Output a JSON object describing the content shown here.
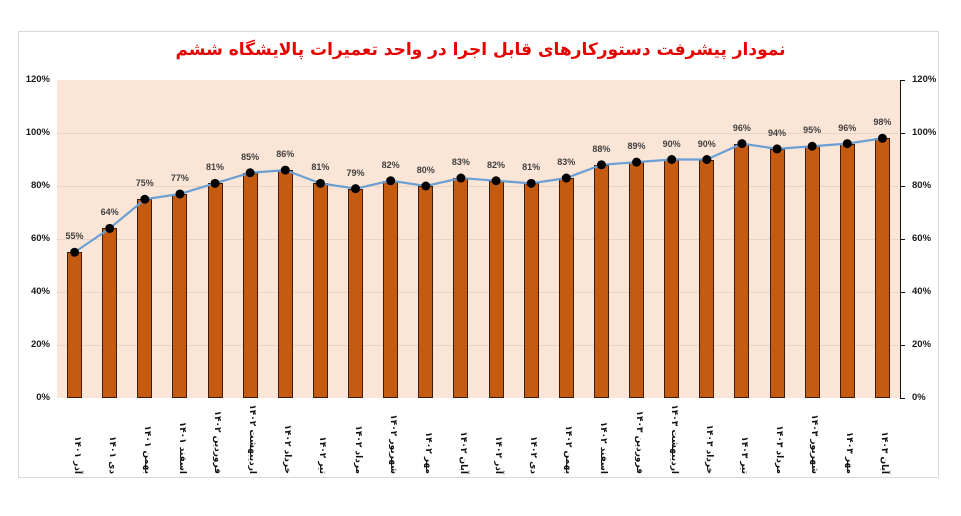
{
  "chart_data": {
    "type": "bar",
    "title": "نمودار پیشرفت دستورکارهای قابل اجرا در واحد تعمیرات پالایشگاه ششم",
    "xlabel": "",
    "ylabel": "",
    "ylim": [
      0,
      120
    ],
    "y_ticks": [
      "0%",
      "20%",
      "40%",
      "60%",
      "80%",
      "100%",
      "120%"
    ],
    "y_tick_values": [
      0,
      20,
      40,
      60,
      80,
      100,
      120
    ],
    "secondary_axis": true,
    "grid": true,
    "legend": "none",
    "categories": [
      "آذر ۱۴۰۱",
      "دی ۱۴۰۱",
      "بهمن ۱۴۰۱",
      "اسفند ۱۴۰۱",
      "فروردین ۱۴۰۲",
      "اردیبهشت ۱۴۰۲",
      "خرداد ۱۴۰۲",
      "تیر ۱۴۰۲",
      "مرداد ۱۴۰۲",
      "شهریور ۱۴۰۲",
      "مهر ۱۴۰۲",
      "آبان ۱۴۰۲",
      "آذر ۱۴۰۲",
      "دی ۱۴۰۲",
      "بهمن ۱۴۰۲",
      "اسفند ۱۴۰۲",
      "فروردین ۱۴۰۳",
      "اردیبهشت ۱۴۰۳",
      "خرداد ۱۴۰۳",
      "تیر ۱۴۰۳",
      "مرداد ۱۴۰۳",
      "شهریور ۱۴۰۳",
      "مهر ۱۴۰۳",
      "آبان ۱۴۰۳"
    ],
    "series": [
      {
        "name": "bars",
        "type": "bar",
        "color": "#c55a11",
        "values": [
          55,
          64,
          75,
          77,
          81,
          85,
          86,
          81,
          79,
          82,
          80,
          83,
          82,
          81,
          83,
          88,
          89,
          90,
          90,
          96,
          94,
          95,
          96,
          98
        ]
      },
      {
        "name": "line",
        "type": "line",
        "color": "#6a9fd4",
        "marker": "circle-black",
        "values": [
          55,
          64,
          75,
          77,
          81,
          85,
          86,
          81,
          79,
          82,
          80,
          83,
          82,
          81,
          83,
          88,
          89,
          90,
          90,
          96,
          94,
          95,
          96,
          98
        ]
      }
    ],
    "data_labels": [
      "55%",
      "64%",
      "75%",
      "77%",
      "81%",
      "85%",
      "86%",
      "81%",
      "79%",
      "82%",
      "80%",
      "83%",
      "82%",
      "81%",
      "83%",
      "88%",
      "89%",
      "90%",
      "90%",
      "96%",
      "94%",
      "95%",
      "96%",
      "98%"
    ]
  },
  "colors": {
    "title": "#e60000",
    "plot_bg": "#fbe5d6",
    "bar": "#c55a11",
    "bar_border": "#3d1c06",
    "line": "#6a9fd4",
    "marker": "#000000"
  }
}
